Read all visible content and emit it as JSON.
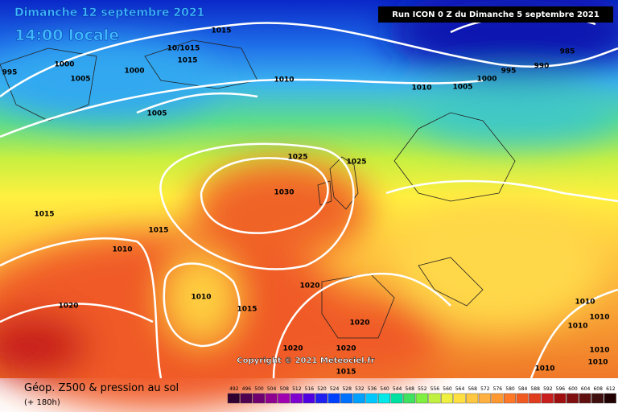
{
  "header": {
    "date": "Dimanche 12 septembre 2021",
    "time": "14:00 locale",
    "run": "Run ICON 0 Z du Dimanche 5 septembre 2021"
  },
  "isobar_labels": [
    "1015",
    "10/1015",
    "1015",
    "1000",
    "1000",
    "995",
    "1005",
    "1010",
    "1005",
    "1010",
    "1005",
    "1000",
    "995",
    "990",
    "985",
    "1025",
    "1025",
    "1030",
    "1015",
    "1015",
    "1010",
    "1020",
    "1010",
    "1015",
    "1020",
    "1020",
    "1010",
    "1010",
    "1010",
    "1010",
    "1010",
    "1010",
    "1020",
    "1020",
    "1015"
  ],
  "copyright": "Copyright © 2021 Meteociel.fr",
  "footer": {
    "title": "Géop. Z500 & pression au sol",
    "lead": "(+ 180h)"
  },
  "legend": {
    "ticks": [
      492,
      496,
      500,
      504,
      508,
      512,
      516,
      520,
      524,
      528,
      532,
      536,
      540,
      544,
      548,
      552,
      556,
      560,
      564,
      568,
      572,
      576,
      580,
      584,
      588,
      592,
      596,
      600,
      604,
      608,
      612
    ]
  }
}
